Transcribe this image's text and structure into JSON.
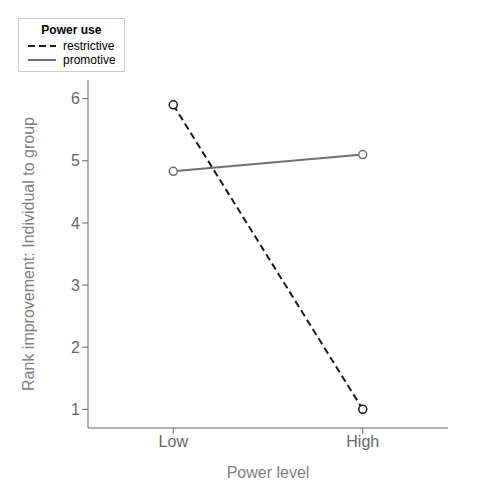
{
  "chart_data": {
    "type": "line",
    "xlabel": "Power level",
    "ylabel": "Rank improvement: Individual to group",
    "x": [
      1,
      2
    ],
    "xlim": [
      0.55,
      2.45
    ],
    "xticks": [
      {
        "value": 1,
        "label": "Low"
      },
      {
        "value": 2,
        "label": "High"
      }
    ],
    "ylim": [
      0.7,
      6.3
    ],
    "yticks": [
      1,
      2,
      3,
      4,
      5,
      6
    ],
    "grid": false,
    "legend": "upper right",
    "legend_title": "Power use",
    "series": [
      {
        "name": "restrictive",
        "color": "#1a1a1a",
        "line_style": "dashed",
        "marker": "o",
        "values": [
          5.9,
          1.0
        ]
      },
      {
        "name": "promotive",
        "color": "#707070",
        "line_style": "solid",
        "marker": "o",
        "values": [
          4.83,
          5.1
        ]
      }
    ]
  }
}
